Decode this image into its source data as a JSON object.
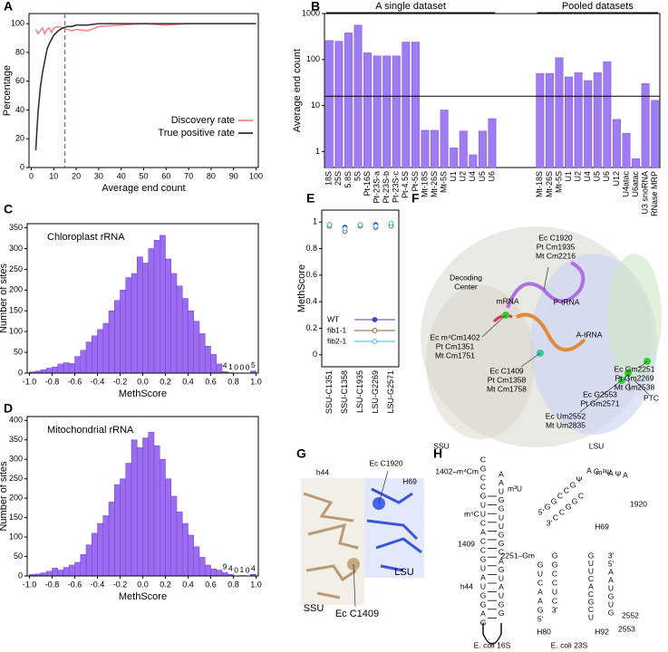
{
  "chart_data": [
    {
      "type": "line",
      "panel": "A",
      "ylabel": "Percentage",
      "xlabel": "Average end count",
      "x": [
        2,
        3,
        4,
        5,
        6,
        7,
        8,
        9,
        10,
        12,
        14,
        16,
        18,
        20,
        25,
        30,
        40,
        50,
        60,
        70,
        80,
        90,
        100
      ],
      "series": [
        {
          "name": "Discovery rate",
          "color": "#f08a8a",
          "values": [
            96,
            93,
            95,
            97,
            93,
            96,
            97,
            94,
            97,
            98,
            97,
            96,
            95,
            96,
            95,
            98,
            99,
            100,
            99,
            100,
            100,
            100,
            100
          ]
        },
        {
          "name": "True positive rate",
          "color": "#333333",
          "values": [
            12,
            38,
            55,
            66,
            74,
            82,
            86,
            89,
            92,
            95,
            97,
            98,
            98,
            99,
            99,
            100,
            100,
            100,
            100,
            100,
            100,
            100,
            100
          ]
        }
      ],
      "vline": 15,
      "xlim": [
        -1,
        101
      ],
      "ylim": [
        0,
        107
      ],
      "xticks": [
        0,
        10,
        20,
        30,
        40,
        50,
        60,
        70,
        80,
        90,
        100
      ],
      "yticks": [
        0,
        20,
        40,
        60,
        80,
        100
      ],
      "legend": "lower right"
    },
    {
      "type": "bar",
      "panel": "B",
      "ylabel": "Average end count",
      "log": true,
      "color": "#a07cf2",
      "groups": [
        {
          "label": "A single dataset",
          "categories": [
            "18S",
            "25S",
            "5.8S",
            "5S",
            "Pt-16S",
            "Pt-23S-a",
            "Pt-23S-b",
            "Pt-23S-c",
            "Pt-4.5S",
            "Pt-5S",
            "Mt-18S",
            "Mt-26S",
            "Mt-5S",
            "U1",
            "U2",
            "U4",
            "U5",
            "U6"
          ],
          "values": [
            260,
            250,
            380,
            560,
            140,
            120,
            120,
            120,
            240,
            240,
            2.9,
            2.9,
            8,
            1.2,
            2.8,
            0.85,
            2.8,
            5.2
          ]
        },
        {
          "label": "Pooled datasets",
          "categories": [
            "Mt-18S",
            "Mt-26S",
            "Mt-5S",
            "U1",
            "U2",
            "U4",
            "U5",
            "U6",
            "U12",
            "U4atac",
            "U6atac",
            "U3 snoRNA",
            "RNase MRP"
          ],
          "values": [
            50,
            50,
            110,
            42,
            52,
            35,
            52,
            90,
            5,
            2.5,
            0.7,
            30,
            13
          ]
        }
      ],
      "hline": 16,
      "ylim": [
        0.45,
        1000
      ],
      "yticks": [
        1,
        10,
        100,
        1000
      ]
    },
    {
      "type": "histogram",
      "panel": "C",
      "annotation": "Chloroplast rRNA",
      "xlabel": "MethScore",
      "ylabel": "Number of sites",
      "color": "#9b6cf0",
      "bins": [
        -1,
        -0.95,
        -0.9,
        -0.85,
        -0.8,
        -0.75,
        -0.7,
        -0.65,
        -0.6,
        -0.55,
        -0.5,
        -0.45,
        -0.4,
        -0.35,
        -0.3,
        -0.25,
        -0.2,
        -0.15,
        -0.1,
        -0.05,
        0,
        0.05,
        0.1,
        0.15,
        0.2,
        0.25,
        0.3,
        0.35,
        0.4,
        0.45,
        0.5,
        0.55,
        0.6,
        0.65,
        0.7,
        0.75,
        0.8,
        0.85,
        0.9,
        0.95,
        1
      ],
      "values": [
        3,
        5,
        8,
        12,
        15,
        22,
        25,
        23,
        40,
        55,
        75,
        90,
        105,
        120,
        150,
        175,
        200,
        230,
        240,
        280,
        265,
        300,
        320,
        332,
        275,
        240,
        210,
        180,
        150,
        125,
        95,
        65,
        45,
        22,
        4,
        1,
        0,
        0,
        0,
        5
      ],
      "value_labels": [
        null,
        null,
        null,
        null,
        null,
        null,
        null,
        null,
        null,
        null,
        null,
        null,
        null,
        null,
        null,
        null,
        null,
        null,
        null,
        null,
        null,
        null,
        null,
        null,
        null,
        null,
        null,
        null,
        null,
        null,
        null,
        null,
        null,
        null,
        "4",
        "1",
        "0",
        "0",
        "0",
        "5"
      ],
      "xlim": [
        -1.02,
        1.02
      ],
      "ylim": [
        0,
        360
      ],
      "xticks": [
        {
          "value": -1,
          "label": "-1.0"
        },
        -0.8,
        -0.6,
        -0.4,
        -0.2,
        {
          "value": 0,
          "label": "0.0"
        },
        0.2,
        0.4,
        0.6,
        0.8,
        {
          "value": 1,
          "label": "1.0"
        }
      ],
      "yticks": [
        0,
        50,
        100,
        150,
        200,
        250,
        300,
        350
      ]
    },
    {
      "type": "histogram",
      "panel": "D",
      "annotation": "Mitochondrial rRNA",
      "xlabel": "MethScore",
      "ylabel": "Number of sites",
      "color": "#9b6cf0",
      "bins": [
        -1,
        -0.95,
        -0.9,
        -0.85,
        -0.8,
        -0.75,
        -0.7,
        -0.65,
        -0.6,
        -0.55,
        -0.5,
        -0.45,
        -0.4,
        -0.35,
        -0.3,
        -0.25,
        -0.2,
        -0.15,
        -0.1,
        -0.05,
        0,
        0.05,
        0.1,
        0.15,
        0.2,
        0.25,
        0.3,
        0.35,
        0.4,
        0.45,
        0.5,
        0.55,
        0.6,
        0.65,
        0.7,
        0.75,
        0.8,
        0.85,
        0.9,
        0.95,
        1
      ],
      "values": [
        4,
        5,
        8,
        12,
        20,
        15,
        22,
        28,
        35,
        55,
        80,
        110,
        135,
        155,
        190,
        235,
        250,
        290,
        350,
        330,
        355,
        370,
        335,
        300,
        250,
        205,
        165,
        135,
        105,
        75,
        48,
        28,
        18,
        15,
        9,
        4,
        0,
        1,
        0,
        4
      ],
      "value_labels": [
        null,
        null,
        null,
        null,
        null,
        null,
        null,
        null,
        null,
        null,
        null,
        null,
        null,
        null,
        null,
        null,
        null,
        null,
        null,
        null,
        null,
        null,
        null,
        null,
        null,
        null,
        null,
        null,
        null,
        null,
        null,
        null,
        null,
        null,
        "9",
        "4",
        "0",
        "1",
        "0",
        "4"
      ],
      "xlim": [
        -1.02,
        1.02
      ],
      "ylim": [
        0,
        410
      ],
      "xticks": [
        {
          "value": -1,
          "label": "-1.0"
        },
        -0.8,
        -0.6,
        -0.4,
        -0.2,
        {
          "value": 0,
          "label": "0.0"
        },
        0.2,
        0.4,
        0.6,
        0.8,
        {
          "value": 1,
          "label": "1.0"
        }
      ],
      "yticks": [
        0,
        50,
        100,
        150,
        200,
        250,
        300,
        350,
        400
      ]
    },
    {
      "type": "scatter",
      "panel": "E",
      "ylabel": "MethScore",
      "categories": [
        "SSU-C1351",
        "SSU-C1358",
        "LSU-C1935",
        "LSU-G2269",
        "LSU-G2571"
      ],
      "series": [
        {
          "name": "WT",
          "color": "#5533cc",
          "marker": "filled",
          "values": [
            0.98,
            0.96,
            0.98,
            0.98,
            0.98
          ]
        },
        {
          "name": "fib1-1",
          "color": "#8b5a3c",
          "marker": "open",
          "values": [
            0.97,
            0.93,
            0.97,
            0.96,
            0.97
          ]
        },
        {
          "name": "fib2-1",
          "color": "#33bbee",
          "marker": "open",
          "values": [
            0.98,
            0.95,
            0.98,
            0.97,
            0.99
          ]
        }
      ],
      "ylim": [
        -0.09,
        1.09
      ],
      "yticks": [
        0,
        0.2,
        0.4,
        0.6,
        0.8,
        1
      ],
      "legend": "lower right"
    }
  ],
  "diagrams": {
    "F": {
      "panel": "F",
      "labels": [
        [
          "Decoding",
          "Center"
        ],
        [
          "mRNA"
        ],
        [
          "Ec C1920",
          "Pt Cm1935",
          "Mt Cm2216"
        ],
        [
          "P-tRNA"
        ],
        [
          "A-tRNA"
        ],
        [
          "Ec m⁴Cm1402",
          "Pt Cm1351",
          "Mt Cm1751"
        ],
        [
          "Ec Gm2251",
          "Pt Gm2269",
          "Mt Gm2538"
        ],
        [
          "Ec C1409",
          "Pt Cm1358",
          "Mt Cm1758"
        ],
        [
          "Ec G2553",
          "Pt Gm2571"
        ],
        [
          "PTC"
        ],
        [
          "Ec Um2552",
          "Mt Um2835"
        ],
        [
          "SSU"
        ],
        [
          "LSU"
        ]
      ]
    },
    "G": {
      "panel": "G",
      "labels": [
        [
          "h44"
        ],
        [
          "H69"
        ],
        [
          "Ec C1920"
        ],
        [
          "LSU"
        ],
        [
          "SSU"
        ],
        [
          "Ec C1409"
        ]
      ]
    },
    "H": {
      "panel": "H",
      "labels": [
        [
          "1402–m⁴Cm"
        ],
        [
          "m³U"
        ],
        [
          "m⁵C"
        ],
        [
          "1409"
        ],
        [
          "h44"
        ],
        [
          "E. coli 16S"
        ],
        [
          "H69"
        ],
        [
          "1920"
        ],
        [
          "H80"
        ],
        [
          "H92"
        ],
        [
          "2251–Gm"
        ],
        [
          "2552"
        ],
        [
          "2553"
        ],
        [
          "E. coli 23S"
        ]
      ],
      "strands": [
        [
          "C",
          "G",
          "C",
          "C",
          "G",
          "U",
          "U",
          "C",
          "A",
          "C",
          "C",
          "G",
          "U",
          "A",
          "U",
          "G",
          "G",
          "A",
          "G"
        ],
        [
          "A",
          "A",
          "U",
          "G",
          "G",
          "U",
          "U",
          "G",
          "G",
          "C",
          "A",
          "G",
          "U",
          "A",
          "U",
          "G",
          "G"
        ],
        [
          "5′",
          "G",
          "G",
          "C",
          "C",
          "G",
          "Ψ"
        ],
        [
          "3′",
          "C",
          "C",
          "G",
          "G",
          "C"
        ],
        [
          "A",
          "C",
          "m³Ψ",
          "A",
          "Ψ",
          "A"
        ],
        [
          "G",
          "U",
          "C",
          "A",
          "A",
          "G",
          "5′"
        ],
        [
          "G",
          "G",
          "C",
          "C",
          "U",
          "C",
          "3′"
        ],
        [
          "G",
          "U",
          "U",
          "C",
          "A",
          "C",
          "G",
          "C",
          "U"
        ],
        [
          "3′",
          "5′",
          "A",
          "A",
          "U",
          "G",
          "U",
          "G"
        ]
      ]
    }
  }
}
